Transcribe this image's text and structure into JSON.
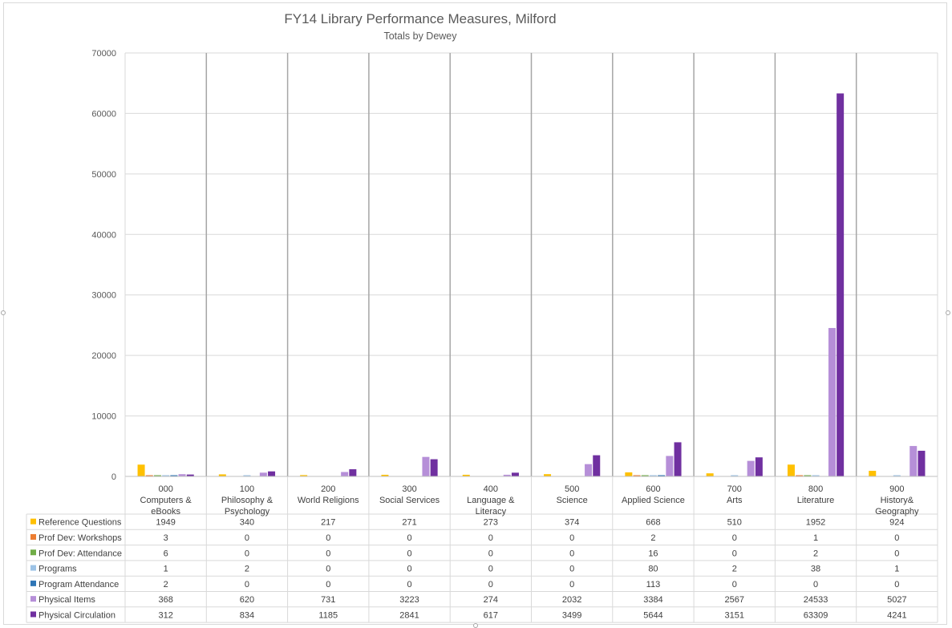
{
  "chart_data": {
    "type": "bar",
    "title": "FY14 Library Performance Measures, Milford",
    "subtitle": "Totals by Dewey",
    "ylim": [
      0,
      70000
    ],
    "yticks": [
      "0",
      "10000",
      "20000",
      "30000",
      "40000",
      "50000",
      "60000",
      "70000"
    ],
    "grid": true,
    "legend": "data-table",
    "categories": [
      [
        "000",
        "Computers &",
        "eBooks"
      ],
      [
        "100",
        "Philosophy &",
        "Psychology"
      ],
      [
        "200",
        "World Religions"
      ],
      [
        "300",
        "Social Services"
      ],
      [
        "400",
        "Language &",
        "Literacy"
      ],
      [
        "500",
        "Science"
      ],
      [
        "600",
        "Applied Science"
      ],
      [
        "700",
        "Arts"
      ],
      [
        "800",
        "Literature"
      ],
      [
        "900",
        "History&",
        "Geography"
      ]
    ],
    "series": [
      {
        "name": "Reference Questions",
        "color": "#ffc000",
        "values": [
          1949,
          340,
          217,
          271,
          273,
          374,
          668,
          510,
          1952,
          924
        ]
      },
      {
        "name": "Prof Dev: Workshops",
        "color": "#ed7d31",
        "values": [
          3,
          0,
          0,
          0,
          0,
          0,
          2,
          0,
          1,
          0
        ]
      },
      {
        "name": "Prof Dev: Attendance",
        "color": "#70ad47",
        "values": [
          6,
          0,
          0,
          0,
          0,
          0,
          16,
          0,
          2,
          0
        ]
      },
      {
        "name": "Programs",
        "color": "#9dc3e6",
        "values": [
          1,
          2,
          0,
          0,
          0,
          0,
          80,
          2,
          38,
          1
        ]
      },
      {
        "name": "Program Attendance",
        "color": "#2e75b6",
        "values": [
          2,
          0,
          0,
          0,
          0,
          0,
          113,
          0,
          0,
          0
        ]
      },
      {
        "name": "Physical Items",
        "color": "#b68fd8",
        "values": [
          368,
          620,
          731,
          3223,
          274,
          2032,
          3384,
          2567,
          24533,
          5027
        ]
      },
      {
        "name": "Physical Circulation",
        "color": "#7030a0",
        "values": [
          312,
          834,
          1185,
          2841,
          617,
          3499,
          5644,
          3151,
          63309,
          4241
        ]
      }
    ]
  }
}
